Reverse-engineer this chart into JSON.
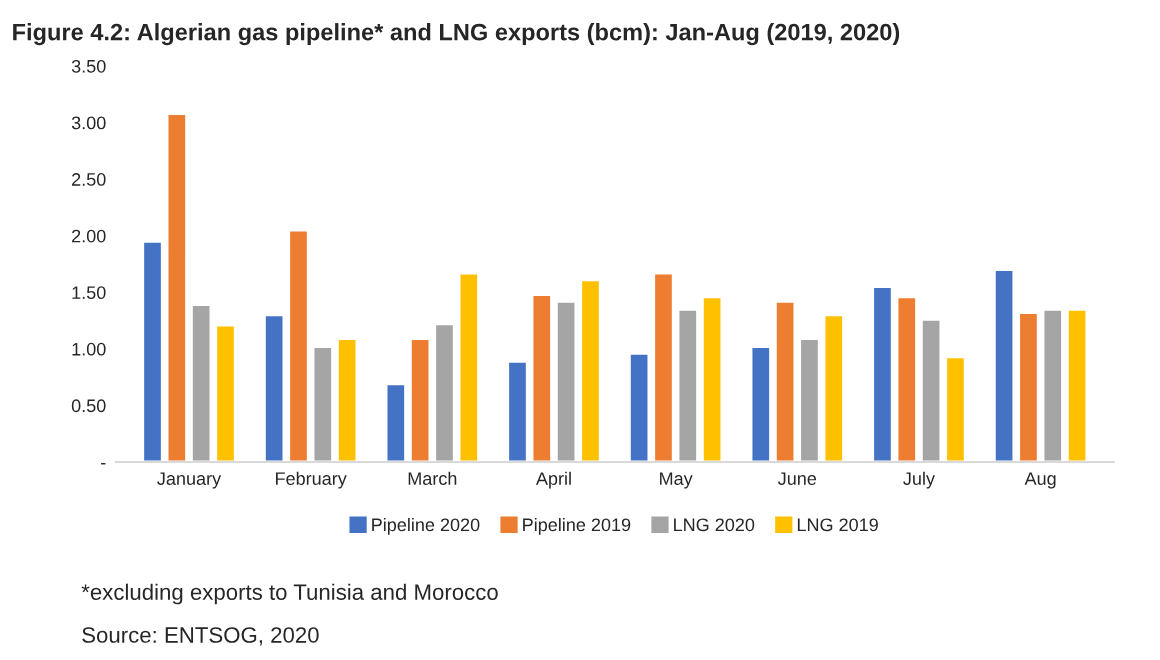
{
  "chart_data": {
    "type": "bar",
    "title": "Figure 4.2: Algerian gas pipeline* and LNG exports (bcm): Jan-Aug (2019, 2020)",
    "categories": [
      "January",
      "February",
      "March",
      "April",
      "May",
      "June",
      "July",
      "Aug"
    ],
    "series": [
      {
        "name": "Pipeline 2020",
        "color": "#4472c4",
        "values": [
          1.95,
          1.3,
          0.69,
          0.89,
          0.96,
          1.02,
          1.55,
          1.7
        ]
      },
      {
        "name": "Pipeline 2019",
        "color": "#ed7d31",
        "values": [
          3.08,
          2.05,
          1.09,
          1.48,
          1.67,
          1.42,
          1.46,
          1.32
        ]
      },
      {
        "name": "LNG 2020",
        "color": "#a5a5a5",
        "values": [
          1.39,
          1.02,
          1.22,
          1.42,
          1.35,
          1.09,
          1.26,
          1.35
        ]
      },
      {
        "name": "LNG 2019",
        "color": "#ffc000",
        "values": [
          1.21,
          1.09,
          1.67,
          1.61,
          1.46,
          1.3,
          0.93,
          1.35
        ]
      }
    ],
    "ylim": [
      0,
      3.5
    ],
    "yticks": [
      {
        "value": 0,
        "label": "-"
      },
      {
        "value": 0.5,
        "label": "0.50"
      },
      {
        "value": 1,
        "label": "1.00"
      },
      {
        "value": 1.5,
        "label": "1.50"
      },
      {
        "value": 2,
        "label": "2.00"
      },
      {
        "value": 2.5,
        "label": "2.50"
      },
      {
        "value": 3,
        "label": "3.00"
      },
      {
        "value": 3.5,
        "label": "3.50"
      }
    ],
    "grid": false,
    "legend": "bottom",
    "annotations": [
      "*excluding exports to Tunisia and Morocco",
      "Source: ENTSOG, 2020"
    ]
  }
}
